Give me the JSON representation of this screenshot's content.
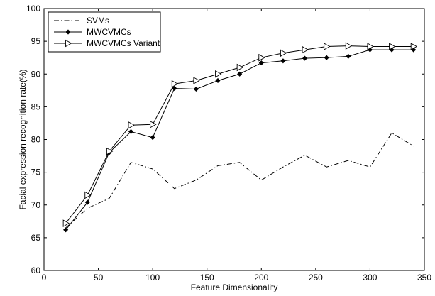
{
  "chart_data": {
    "type": "line",
    "xlabel": "Feature Dimensionality",
    "ylabel": "Facial expression recognition rate(%)",
    "xlim": [
      0,
      350
    ],
    "ylim": [
      60,
      100
    ],
    "xticks": [
      0,
      50,
      100,
      150,
      200,
      250,
      300,
      350
    ],
    "yticks": [
      60,
      65,
      70,
      75,
      80,
      85,
      90,
      95,
      100
    ],
    "grid": false,
    "legend_position": "top-left",
    "x": [
      20,
      40,
      60,
      80,
      100,
      120,
      140,
      160,
      180,
      200,
      220,
      240,
      260,
      280,
      300,
      320,
      340
    ],
    "series": [
      {
        "name": "SVMs",
        "style": "dash-dot",
        "marker": "none",
        "values": [
          66.5,
          69.5,
          71.0,
          76.5,
          75.5,
          72.5,
          73.8,
          76.0,
          76.5,
          73.8,
          75.8,
          77.6,
          75.8,
          76.8,
          75.8,
          81.0,
          79.0
        ]
      },
      {
        "name": "MWCVMCs",
        "style": "solid",
        "marker": "diamond",
        "values": [
          66.2,
          70.4,
          78.0,
          81.2,
          80.3,
          87.8,
          87.7,
          89.0,
          90.0,
          91.7,
          92.0,
          92.4,
          92.5,
          92.7,
          93.7,
          93.7,
          93.7
        ]
      },
      {
        "name": "MWCVMCs Variant",
        "style": "solid",
        "marker": "triangle-right",
        "values": [
          67.2,
          71.5,
          78.2,
          82.2,
          82.3,
          88.5,
          89.0,
          90.0,
          91.0,
          92.5,
          93.2,
          93.7,
          94.2,
          94.3,
          94.2,
          94.2,
          94.2
        ]
      }
    ]
  }
}
